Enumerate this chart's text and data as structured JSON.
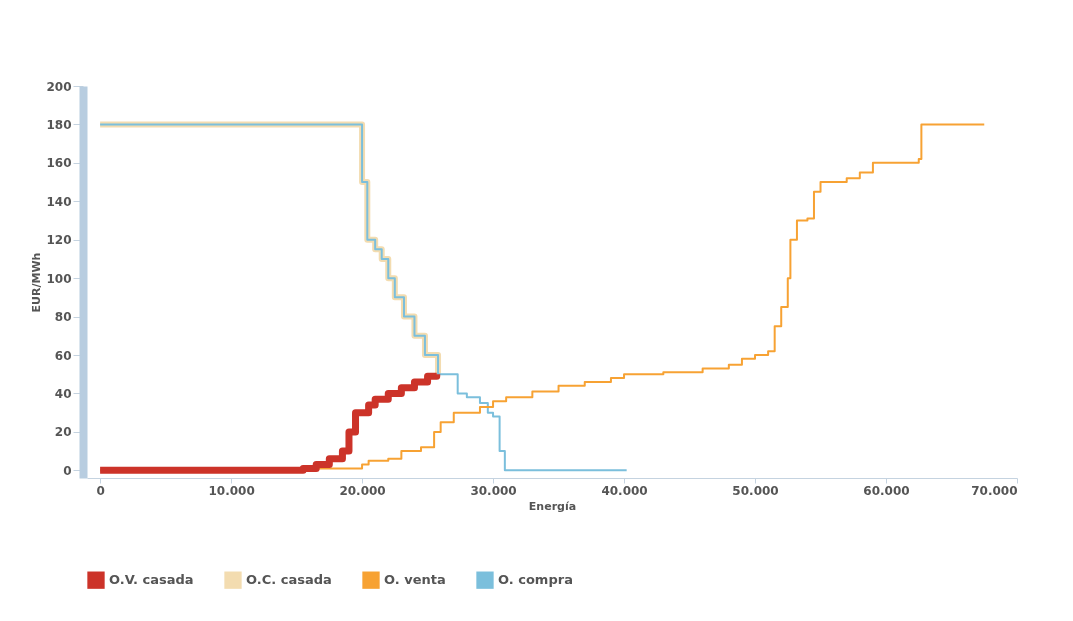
{
  "chart_data": {
    "type": "step",
    "xlabel": "Energía",
    "ylabel": "EUR/MWh",
    "xlim": [
      -1000,
      70000
    ],
    "ylim": [
      -4,
      200
    ],
    "xticks": [
      0,
      {
        "value": 10000,
        "label": "10.000"
      },
      {
        "value": 20000,
        "label": "20.000"
      },
      {
        "value": 30000,
        "label": "30.000"
      },
      {
        "value": 40000,
        "label": "40.000"
      },
      {
        "value": 50000,
        "label": "50.000"
      },
      {
        "value": 60000,
        "label": "60.000"
      },
      {
        "value": 70000,
        "label": "70.000"
      }
    ],
    "yticks": [
      0,
      20,
      40,
      60,
      80,
      100,
      120,
      140,
      160,
      180,
      200
    ],
    "grid": false,
    "legend": "bottom",
    "marker": "none",
    "line_style": "solid",
    "series": [
      {
        "name": "O.V. casada",
        "color": "#cc3329",
        "x": [
          0,
          15000,
          15500,
          16500,
          17500,
          18500,
          19000,
          19500,
          20000,
          20500,
          21000,
          22000,
          23000,
          24000,
          25000,
          25700
        ],
        "values": [
          0,
          0,
          1,
          3,
          6,
          10,
          20,
          30,
          30,
          34,
          37,
          40,
          43,
          46,
          49,
          50
        ]
      },
      {
        "name": "O.C. casada",
        "color": "#f3dcb0",
        "x": [
          0,
          20000,
          20400,
          21000,
          21500,
          22000,
          22500,
          23200,
          24000,
          24800,
          25800
        ],
        "values": [
          180,
          150,
          120,
          115,
          110,
          100,
          90,
          80,
          70,
          60,
          50
        ]
      },
      {
        "name": "O. venta",
        "color": "#f7a233",
        "x": [
          0,
          15000,
          20000,
          20500,
          22000,
          23000,
          24500,
          25500,
          26000,
          27000,
          28000,
          29000,
          30000,
          31000,
          33000,
          35000,
          37000,
          39000,
          40000,
          43000,
          46000,
          48000,
          49000,
          50000,
          51000,
          51500,
          52000,
          52500,
          52700,
          53200,
          54000,
          54500,
          55000,
          57000,
          58000,
          59000,
          61000,
          62500,
          62700,
          67500
        ],
        "values": [
          0,
          1,
          3,
          5,
          6,
          10,
          12,
          20,
          25,
          30,
          30,
          33,
          36,
          38,
          41,
          44,
          46,
          48,
          50,
          51,
          53,
          55,
          58,
          60,
          62,
          75,
          85,
          100,
          120,
          130,
          131,
          145,
          150,
          152,
          155,
          160,
          160,
          162,
          180,
          180
        ]
      },
      {
        "name": "O. compra",
        "color": "#7bbfdc",
        "x": [
          0,
          20000,
          20400,
          21000,
          21500,
          22000,
          22500,
          23200,
          24000,
          24800,
          25800,
          27300,
          28000,
          29000,
          29600,
          30000,
          30500,
          30900,
          40200
        ],
        "values": [
          180,
          150,
          120,
          115,
          110,
          100,
          90,
          80,
          70,
          60,
          50,
          40,
          38,
          35,
          30,
          28,
          10,
          0,
          0
        ]
      }
    ]
  }
}
